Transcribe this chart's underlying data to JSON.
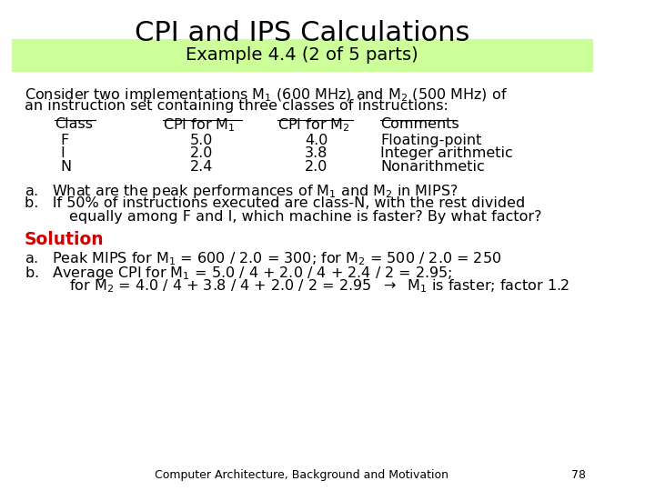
{
  "title": "CPI and IPS Calculations",
  "subtitle": "Example 4.4 (2 of 5 parts)",
  "subtitle_bg": "#ccff99",
  "bg_color": "#ffffff",
  "title_fontsize": 22,
  "subtitle_fontsize": 14,
  "body_fontsize": 11.5,
  "footer_text": "Computer Architecture, Background and Motivation",
  "footer_page": "78",
  "solution_color": "#cc0000",
  "text_color": "#000000"
}
